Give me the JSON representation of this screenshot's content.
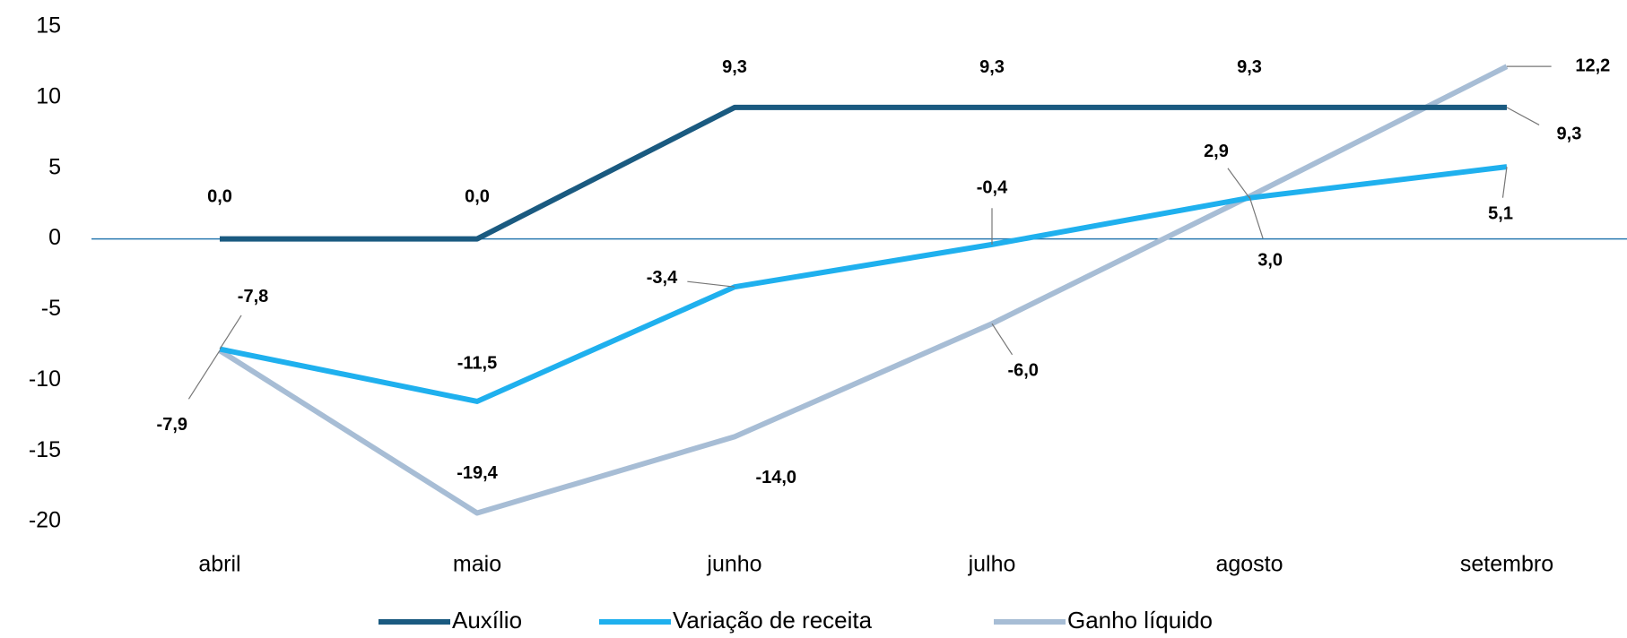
{
  "chart_data": {
    "type": "line",
    "categories": [
      "abril",
      "maio",
      "junho",
      "julho",
      "agosto",
      "setembro"
    ],
    "series": [
      {
        "name": "Auxílio",
        "color": "#1a5a80",
        "values": [
          0.0,
          0.0,
          9.3,
          9.3,
          9.3,
          9.3
        ],
        "value_labels": [
          "0,0",
          "0,0",
          "9,3",
          "9,3",
          "9,3",
          "9,3"
        ]
      },
      {
        "name": "Variação de receita",
        "color": "#1fb0ee",
        "values": [
          -7.8,
          -11.5,
          -3.4,
          -0.4,
          2.9,
          5.1
        ],
        "value_labels": [
          "-7,8",
          "-11,5",
          "-3,4",
          "-0,4",
          "2,9",
          "5,1"
        ]
      },
      {
        "name": "Ganho líquido",
        "color": "#a7bdd5",
        "values": [
          -7.9,
          -19.4,
          -14.0,
          -6.0,
          3.0,
          12.2
        ],
        "value_labels": [
          "-7,9",
          "-19,4",
          "-14,0",
          "-6,0",
          "3,0",
          "12,2"
        ]
      }
    ],
    "ylim": [
      -20,
      15
    ],
    "yticks": [
      15,
      10,
      5,
      0,
      -5,
      -10,
      -15,
      -20
    ],
    "legend": "bottom"
  }
}
